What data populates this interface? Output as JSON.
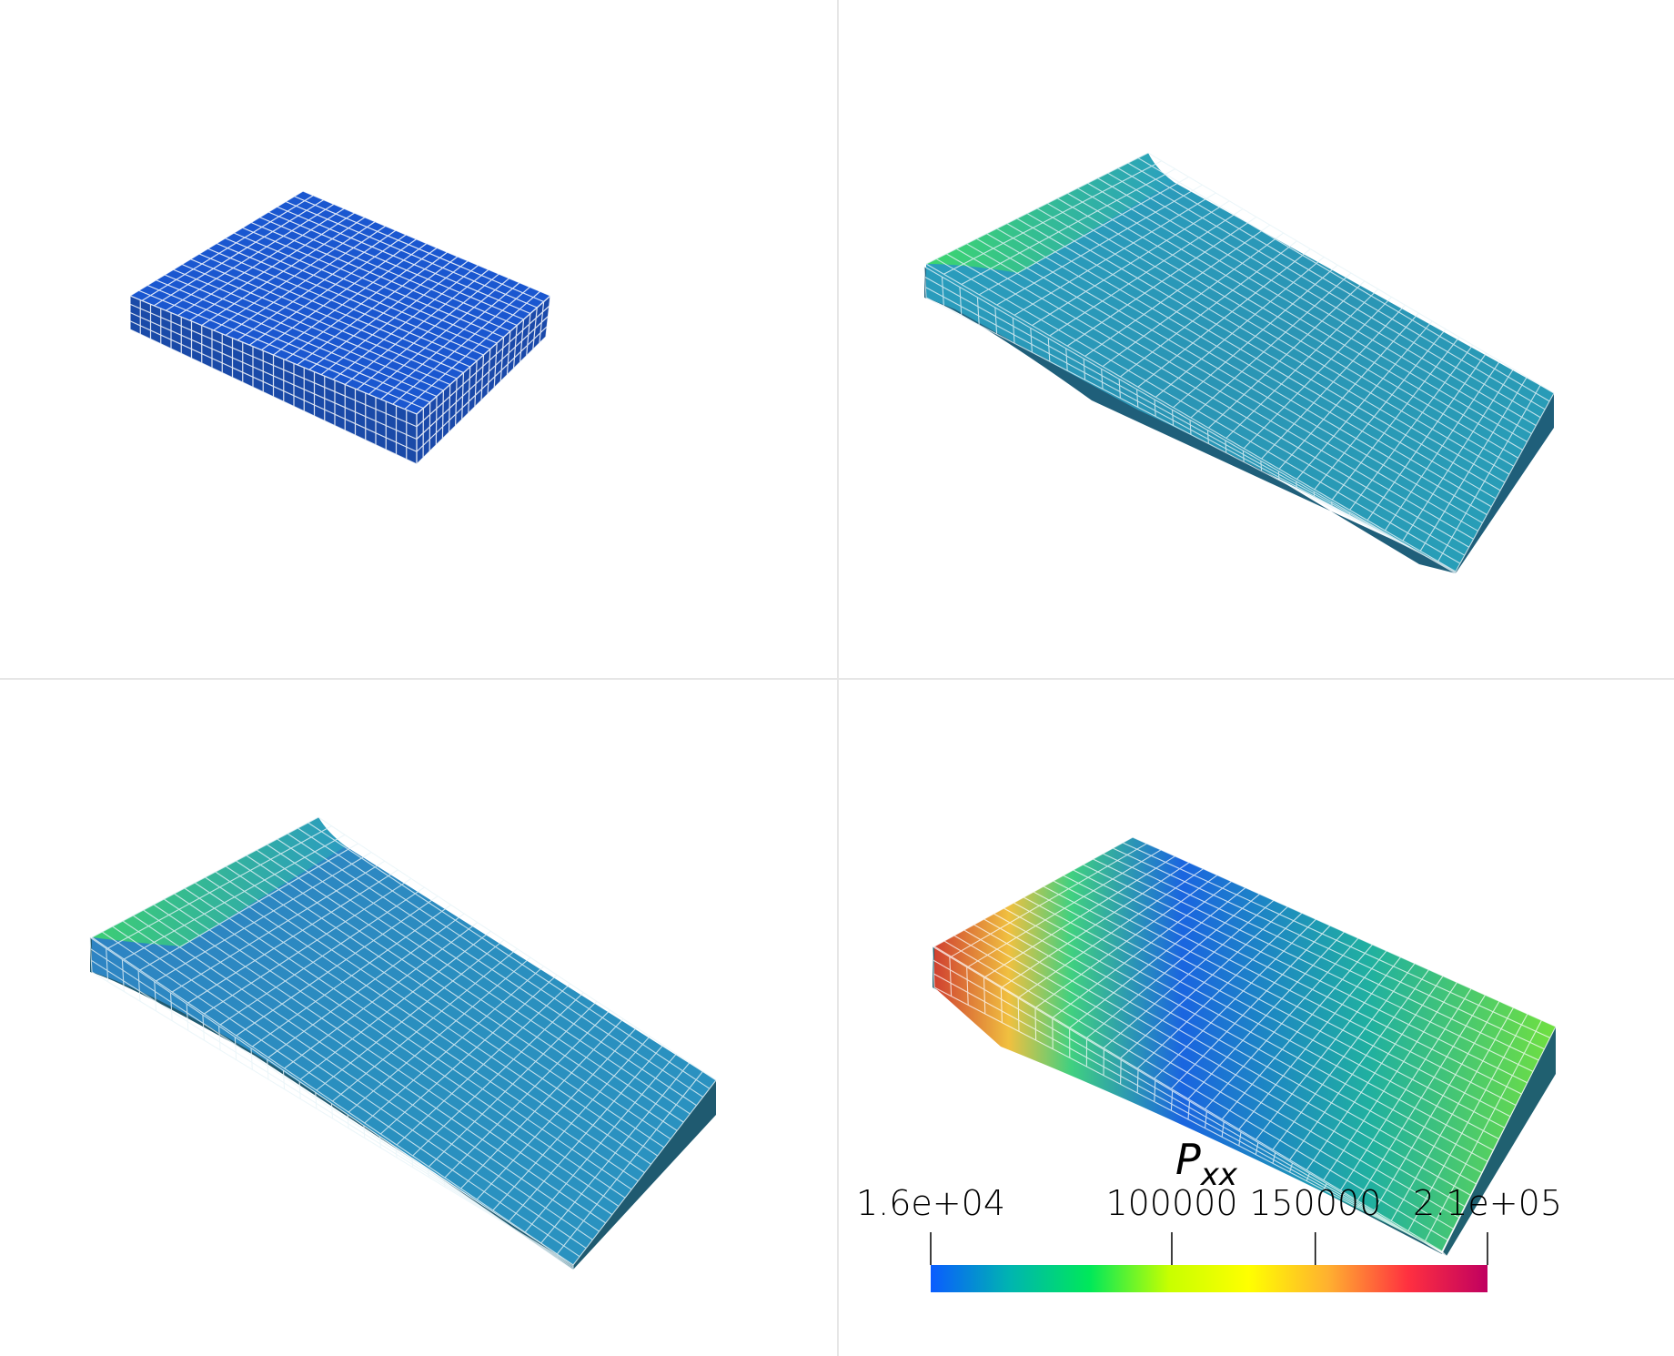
{
  "views": [
    {
      "name": "view-top-left",
      "state": "undeformed"
    },
    {
      "name": "view-top-right",
      "state": "deformed"
    },
    {
      "name": "view-bottom-left",
      "state": "deformed"
    },
    {
      "name": "view-bottom-right",
      "state": "deformed"
    }
  ],
  "colorbar": {
    "title_main": "P",
    "title_sub": "xx",
    "min_label": "1.6e+04",
    "max_label": "2.1e+05",
    "min_value": 16000,
    "max_value": 210000,
    "ticks": [
      {
        "value": 100000,
        "label": "100000"
      },
      {
        "value": 150000,
        "label": "150000"
      }
    ],
    "colormap": [
      "#0a5cff",
      "#00b5b0",
      "#00e85a",
      "#c8ff00",
      "#ffff00",
      "#ffb030",
      "#ff3040",
      "#c00060"
    ]
  },
  "colors": {
    "divider": "#e6e6e6",
    "grid_line": "#ffffff",
    "plate_blue": "#1a55cc",
    "plate_teal": "#2a8fb0",
    "plate_green": "#30d060"
  }
}
